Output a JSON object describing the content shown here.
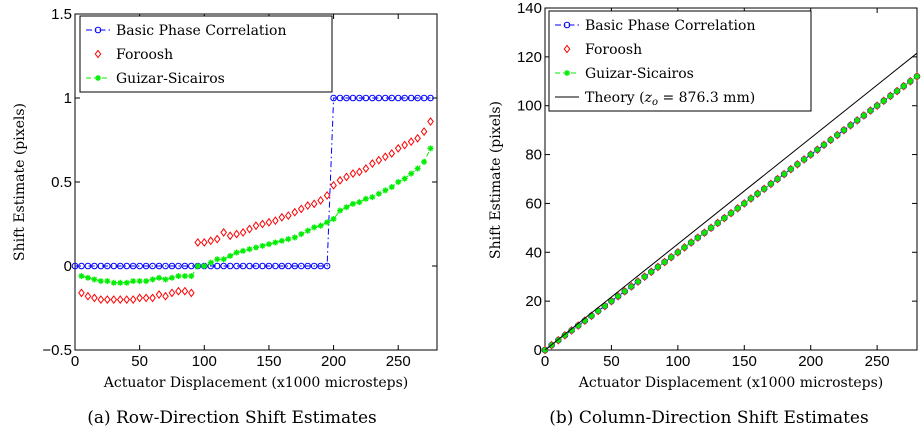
{
  "chart_data": [
    {
      "type": "line",
      "caption": "(a) Row-Direction Shift Estimates",
      "xlabel": "Actuator Displacement (x1000 microsteps)",
      "ylabel": "Shift Estimate (pixels)",
      "xlim": [
        0,
        280
      ],
      "ylim": [
        -0.5,
        1.5
      ],
      "xticks": [
        0,
        50,
        100,
        150,
        200,
        250
      ],
      "yticks": [
        -0.5,
        0,
        0.5,
        1,
        1.5
      ],
      "ytick_labels": [
        "−0.5",
        "0",
        "0.5",
        "1",
        "1.5"
      ],
      "grid": false,
      "legend_position": "top-left",
      "series": [
        {
          "name": "Basic Phase Correlation",
          "color": "#0000ff",
          "marker": "circle",
          "line": "dashdot",
          "x": [
            0,
            5,
            10,
            15,
            20,
            25,
            30,
            35,
            40,
            45,
            50,
            55,
            60,
            65,
            70,
            75,
            80,
            85,
            90,
            95,
            100,
            105,
            110,
            115,
            120,
            125,
            130,
            135,
            140,
            145,
            150,
            155,
            160,
            165,
            170,
            175,
            180,
            185,
            190,
            195,
            200,
            205,
            210,
            215,
            220,
            225,
            230,
            235,
            240,
            245,
            250,
            255,
            260,
            265,
            270,
            275
          ],
          "y": [
            0,
            0,
            0,
            0,
            0,
            0,
            0,
            0,
            0,
            0,
            0,
            0,
            0,
            0,
            0,
            0,
            0,
            0,
            0,
            0,
            0,
            0,
            0,
            0,
            0,
            0,
            0,
            0,
            0,
            0,
            0,
            0,
            0,
            0,
            0,
            0,
            0,
            0,
            0,
            0,
            1,
            1,
            1,
            1,
            1,
            1,
            1,
            1,
            1,
            1,
            1,
            1,
            1,
            1,
            1,
            1
          ]
        },
        {
          "name": "Foroosh",
          "color": "#ff0000",
          "marker": "diamond",
          "line": "none",
          "x": [
            5,
            10,
            15,
            20,
            25,
            30,
            35,
            40,
            45,
            50,
            55,
            60,
            65,
            70,
            75,
            80,
            85,
            90,
            95,
            100,
            105,
            110,
            115,
            120,
            125,
            130,
            135,
            140,
            145,
            150,
            155,
            160,
            165,
            170,
            175,
            180,
            185,
            190,
            195,
            200,
            205,
            210,
            215,
            220,
            225,
            230,
            235,
            240,
            245,
            250,
            255,
            260,
            265,
            270,
            275
          ],
          "y": [
            -0.16,
            -0.18,
            -0.19,
            -0.2,
            -0.2,
            -0.2,
            -0.2,
            -0.2,
            -0.2,
            -0.19,
            -0.19,
            -0.19,
            -0.17,
            -0.18,
            -0.16,
            -0.15,
            -0.15,
            -0.16,
            0.14,
            0.14,
            0.15,
            0.16,
            0.2,
            0.18,
            0.19,
            0.2,
            0.22,
            0.24,
            0.25,
            0.26,
            0.27,
            0.29,
            0.3,
            0.32,
            0.34,
            0.36,
            0.37,
            0.39,
            0.42,
            0.48,
            0.51,
            0.53,
            0.55,
            0.56,
            0.58,
            0.61,
            0.63,
            0.65,
            0.67,
            0.7,
            0.72,
            0.74,
            0.76,
            0.8,
            0.86
          ]
        },
        {
          "name": "Guizar-Sicairos",
          "color": "#00ee00",
          "marker": "star",
          "line": "dashed",
          "x": [
            5,
            10,
            15,
            20,
            25,
            30,
            35,
            40,
            45,
            50,
            55,
            60,
            65,
            70,
            75,
            80,
            85,
            90,
            95,
            100,
            105,
            110,
            115,
            120,
            125,
            130,
            135,
            140,
            145,
            150,
            155,
            160,
            165,
            170,
            175,
            180,
            185,
            190,
            195,
            200,
            205,
            210,
            215,
            220,
            225,
            230,
            235,
            240,
            245,
            250,
            255,
            260,
            265,
            270,
            275
          ],
          "y": [
            -0.06,
            -0.07,
            -0.08,
            -0.09,
            -0.09,
            -0.1,
            -0.1,
            -0.1,
            -0.09,
            -0.09,
            -0.09,
            -0.08,
            -0.07,
            -0.08,
            -0.07,
            -0.06,
            -0.06,
            -0.06,
            0,
            0,
            0.02,
            0.04,
            0.04,
            0.06,
            0.08,
            0.09,
            0.1,
            0.11,
            0.12,
            0.13,
            0.14,
            0.15,
            0.16,
            0.17,
            0.19,
            0.21,
            0.23,
            0.24,
            0.26,
            0.28,
            0.33,
            0.35,
            0.37,
            0.38,
            0.4,
            0.41,
            0.43,
            0.45,
            0.47,
            0.5,
            0.52,
            0.55,
            0.58,
            0.62,
            0.7
          ]
        }
      ]
    },
    {
      "type": "line",
      "caption": "(b) Column-Direction Shift Estimates",
      "xlabel": "Actuator Displacement (x1000 microsteps)",
      "ylabel": "Shift Estimate (pixels)",
      "xlim": [
        0,
        280
      ],
      "ylim": [
        0,
        140
      ],
      "xticks": [
        0,
        50,
        100,
        150,
        200,
        250
      ],
      "yticks": [
        0,
        20,
        40,
        60,
        80,
        100,
        120,
        140
      ],
      "grid": false,
      "legend_position": "top-left",
      "series": [
        {
          "name": "Basic Phase Correlation",
          "color": "#0000ff",
          "marker": "circle",
          "line": "dashdot",
          "x": [
            0,
            5,
            10,
            15,
            20,
            25,
            30,
            35,
            40,
            45,
            50,
            55,
            60,
            65,
            70,
            75,
            80,
            85,
            90,
            95,
            100,
            105,
            110,
            115,
            120,
            125,
            130,
            135,
            140,
            145,
            150,
            155,
            160,
            165,
            170,
            175,
            180,
            185,
            190,
            195,
            200,
            205,
            210,
            215,
            220,
            225,
            230,
            235,
            240,
            245,
            250,
            255,
            260,
            265,
            270,
            275,
            280
          ],
          "y": [
            0,
            2,
            4,
            6,
            8,
            10,
            12,
            14,
            16,
            18,
            20,
            22,
            24,
            26,
            28,
            30,
            32,
            34,
            36,
            38,
            40,
            42,
            44,
            46,
            48,
            50,
            52,
            54,
            56,
            58,
            60,
            62,
            64,
            66,
            68,
            70,
            72,
            74,
            76,
            78,
            80,
            82,
            84,
            86,
            88,
            90,
            92,
            94,
            96,
            98,
            100,
            102,
            104,
            106,
            108,
            110,
            112
          ]
        },
        {
          "name": "Foroosh",
          "color": "#ff0000",
          "marker": "diamond",
          "line": "none",
          "x": [
            0,
            5,
            10,
            15,
            20,
            25,
            30,
            35,
            40,
            45,
            50,
            55,
            60,
            65,
            70,
            75,
            80,
            85,
            90,
            95,
            100,
            105,
            110,
            115,
            120,
            125,
            130,
            135,
            140,
            145,
            150,
            155,
            160,
            165,
            170,
            175,
            180,
            185,
            190,
            195,
            200,
            205,
            210,
            215,
            220,
            225,
            230,
            235,
            240,
            245,
            250,
            255,
            260,
            265,
            270,
            275,
            280
          ],
          "y": [
            0,
            2,
            4,
            6,
            8,
            10,
            12,
            14,
            16,
            18,
            20,
            22,
            24,
            26,
            28,
            30,
            32,
            34,
            36,
            38,
            40,
            42,
            44,
            46,
            48,
            50,
            52,
            54,
            56,
            58,
            60,
            62,
            64,
            66,
            68,
            70,
            72,
            74,
            76,
            78,
            80,
            82,
            84,
            86,
            88,
            90,
            92,
            94,
            96,
            98,
            100,
            102,
            104,
            106,
            108,
            110,
            112
          ]
        },
        {
          "name": "Guizar-Sicairos",
          "color": "#00ee00",
          "marker": "star",
          "line": "dashed",
          "x": [
            0,
            5,
            10,
            15,
            20,
            25,
            30,
            35,
            40,
            45,
            50,
            55,
            60,
            65,
            70,
            75,
            80,
            85,
            90,
            95,
            100,
            105,
            110,
            115,
            120,
            125,
            130,
            135,
            140,
            145,
            150,
            155,
            160,
            165,
            170,
            175,
            180,
            185,
            190,
            195,
            200,
            205,
            210,
            215,
            220,
            225,
            230,
            235,
            240,
            245,
            250,
            255,
            260,
            265,
            270,
            275,
            280
          ],
          "y": [
            0,
            2,
            4,
            6,
            8,
            10,
            12,
            14,
            16,
            18,
            20,
            22,
            24,
            26,
            28,
            30,
            32,
            34,
            36,
            38,
            40,
            42,
            44,
            46,
            48,
            50,
            52,
            54,
            56,
            58,
            60,
            62,
            64,
            66,
            68,
            70,
            72,
            74,
            76,
            78,
            80,
            82,
            84,
            86,
            88,
            90,
            92,
            94,
            96,
            98,
            100,
            102,
            104,
            106,
            108,
            110,
            112
          ]
        },
        {
          "name": "Theory (z_o = 876.3 mm)",
          "name_prefix": "Theory (",
          "name_var": "z",
          "name_sub": "o",
          "name_suffix": " = 876.3 mm)",
          "color": "#000000",
          "marker": "none",
          "line": "solid",
          "x": [
            0,
            280
          ],
          "y": [
            0,
            121.5
          ]
        }
      ]
    }
  ]
}
